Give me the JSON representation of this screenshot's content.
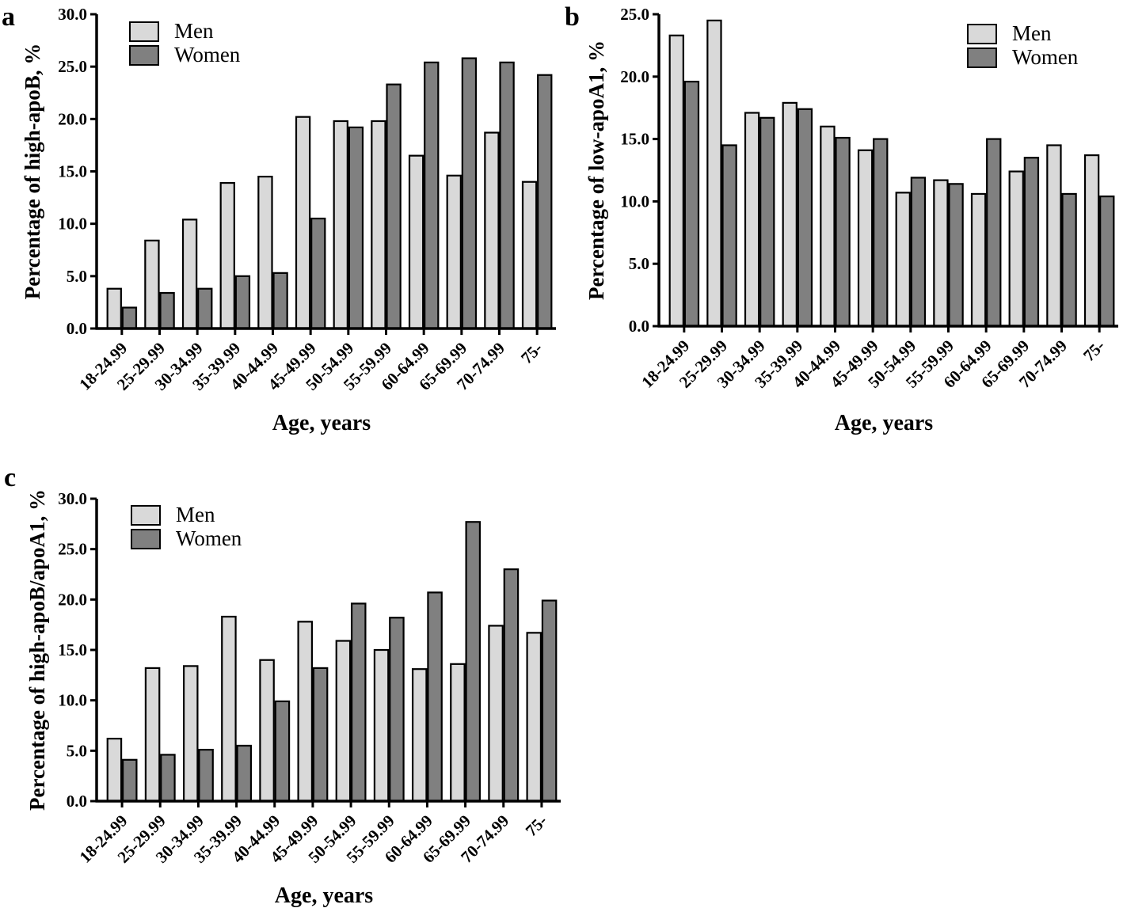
{
  "colors": {
    "men": "#d9d9d9",
    "women": "#808080",
    "stroke": "#000000"
  },
  "chart_data": [
    {
      "id": "a",
      "type": "bar",
      "panel_label": "a",
      "categories": [
        "18-24.99",
        "25-29.99",
        "30-34.99",
        "35-39.99",
        "40-44.99",
        "45-49.99",
        "50-54.99",
        "55-59.99",
        "60-64.99",
        "65-69.99",
        "70-74.99",
        "75-"
      ],
      "series": [
        {
          "name": "Men",
          "values": [
            3.8,
            8.4,
            10.4,
            13.9,
            14.5,
            20.2,
            19.8,
            19.8,
            16.5,
            14.6,
            18.7,
            14.0
          ]
        },
        {
          "name": "Women",
          "values": [
            2.0,
            3.4,
            3.8,
            5.0,
            5.3,
            10.5,
            19.2,
            23.3,
            25.4,
            25.8,
            25.4,
            24.2
          ]
        }
      ],
      "xlabel": "Age, years",
      "ylabel": "Percentage of high-apoB, %",
      "ylim": [
        0,
        30
      ],
      "yticks": [
        "0.0",
        "5.0",
        "10.0",
        "15.0",
        "20.0",
        "25.0",
        "30.0"
      ],
      "legend_position": "top-left"
    },
    {
      "id": "b",
      "type": "bar",
      "panel_label": "b",
      "categories": [
        "18-24.99",
        "25-29.99",
        "30-34.99",
        "35-39.99",
        "40-44.99",
        "45-49.99",
        "50-54.99",
        "55-59.99",
        "60-64.99",
        "65-69.99",
        "70-74.99",
        "75-"
      ],
      "series": [
        {
          "name": "Men",
          "values": [
            23.3,
            24.5,
            17.1,
            17.9,
            16.0,
            14.1,
            10.7,
            11.7,
            10.6,
            12.4,
            14.5,
            13.7
          ]
        },
        {
          "name": "Women",
          "values": [
            19.6,
            14.5,
            16.7,
            17.4,
            15.1,
            15.0,
            11.9,
            11.4,
            15.0,
            13.5,
            10.6,
            10.4
          ]
        }
      ],
      "xlabel": "Age, years",
      "ylabel": "Percentage of low-apoA1, %",
      "ylim": [
        0,
        25
      ],
      "yticks": [
        "0.0",
        "5.0",
        "10.0",
        "15.0",
        "20.0",
        "25.0"
      ],
      "legend_position": "top-right"
    },
    {
      "id": "c",
      "type": "bar",
      "panel_label": "c",
      "categories": [
        "18-24.99",
        "25-29.99",
        "30-34.99",
        "35-39.99",
        "40-44.99",
        "45-49.99",
        "50-54.99",
        "55-59.99",
        "60-64.99",
        "65-69.99",
        "70-74.99",
        "75-"
      ],
      "series": [
        {
          "name": "Men",
          "values": [
            6.2,
            13.2,
            13.4,
            18.3,
            14.0,
            17.8,
            15.9,
            15.0,
            13.1,
            13.6,
            17.4,
            16.7
          ]
        },
        {
          "name": "Women",
          "values": [
            4.1,
            4.6,
            5.1,
            5.5,
            9.9,
            13.2,
            19.6,
            18.2,
            20.7,
            27.7,
            23.0,
            19.9
          ]
        }
      ],
      "xlabel": "Age, years",
      "ylabel": "Percentage of high-apoB/apoA1, %",
      "ylim": [
        0,
        30
      ],
      "yticks": [
        "0.0",
        "5.0",
        "10.0",
        "15.0",
        "20.0",
        "25.0",
        "30.0"
      ],
      "legend_position": "top-left"
    }
  ]
}
